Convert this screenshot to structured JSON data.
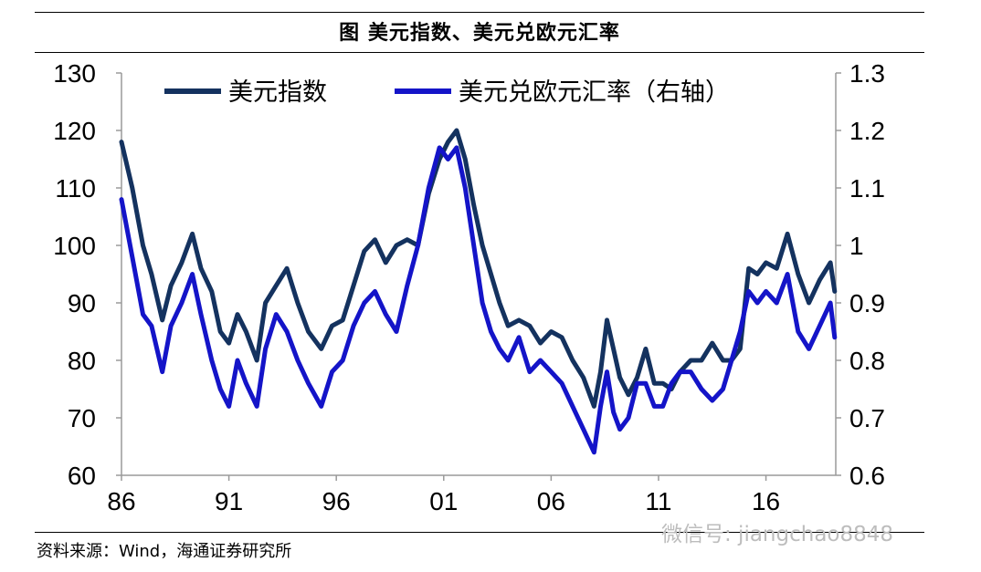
{
  "title": "图  美元指数、美元兑欧元汇率",
  "source": "资料来源：Wind，海通证券研究所",
  "watermark": "微信号: jiangchao8848",
  "chart_data": {
    "type": "line",
    "x_ticks": [
      "86",
      "91",
      "96",
      "01",
      "06",
      "11",
      "16"
    ],
    "x_tick_years": [
      1986,
      1991,
      1996,
      2001,
      2006,
      2011,
      2016
    ],
    "xlim": [
      1986,
      2019.25
    ],
    "ylim_left": [
      60,
      130
    ],
    "yticks_left": [
      "60",
      "70",
      "80",
      "90",
      "100",
      "110",
      "120",
      "130"
    ],
    "ylim_right": [
      0.6,
      1.3
    ],
    "yticks_right": [
      "0.6",
      "0.7",
      "0.8",
      "0.9",
      "1",
      "1.1",
      "1.2",
      "1.3"
    ],
    "grid": false,
    "legend_position": "top",
    "series": [
      {
        "name": "美元指数",
        "axis": "left",
        "color": "#14325f",
        "x": [
          1986.0,
          1986.5,
          1987.0,
          1987.4,
          1987.9,
          1988.3,
          1988.8,
          1989.3,
          1989.7,
          1990.2,
          1990.6,
          1991.0,
          1991.4,
          1991.8,
          1992.3,
          1992.7,
          1993.2,
          1993.7,
          1994.2,
          1994.7,
          1995.3,
          1995.8,
          1996.3,
          1996.8,
          1997.3,
          1997.8,
          1998.3,
          1998.8,
          1999.3,
          1999.8,
          2000.3,
          2000.8,
          2001.2,
          2001.6,
          2002.0,
          2002.4,
          2002.8,
          2003.2,
          2003.6,
          2004.0,
          2004.5,
          2005.0,
          2005.5,
          2006.0,
          2006.5,
          2007.0,
          2007.5,
          2008.0,
          2008.3,
          2008.6,
          2008.9,
          2009.2,
          2009.6,
          2010.0,
          2010.4,
          2010.8,
          2011.2,
          2011.6,
          2012.0,
          2012.5,
          2013.0,
          2013.5,
          2014.0,
          2014.4,
          2014.8,
          2015.2,
          2015.6,
          2016.0,
          2016.5,
          2017.0,
          2017.5,
          2018.0,
          2018.5,
          2019.0,
          2019.2
        ],
        "values": [
          118,
          110,
          100,
          95,
          87,
          93,
          97,
          102,
          96,
          92,
          85,
          83,
          88,
          85,
          80,
          90,
          93,
          96,
          90,
          85,
          82,
          86,
          87,
          93,
          99,
          101,
          97,
          100,
          101,
          100,
          109,
          115,
          118,
          120,
          115,
          107,
          100,
          95,
          90,
          86,
          87,
          86,
          83,
          85,
          84,
          80,
          77,
          72,
          78,
          87,
          82,
          77,
          74,
          77,
          82,
          76,
          76,
          75,
          78,
          80,
          80,
          83,
          80,
          80,
          82,
          96,
          95,
          97,
          96,
          102,
          95,
          90,
          94,
          97,
          92
        ]
      },
      {
        "name": "美元兑欧元汇率（右轴）",
        "axis": "right",
        "color": "#1414c8",
        "x": [
          1986.0,
          1986.5,
          1987.0,
          1987.4,
          1987.9,
          1988.3,
          1988.8,
          1989.3,
          1989.7,
          1990.2,
          1990.6,
          1991.0,
          1991.4,
          1991.8,
          1992.3,
          1992.7,
          1993.2,
          1993.7,
          1994.2,
          1994.7,
          1995.3,
          1995.8,
          1996.3,
          1996.8,
          1997.3,
          1997.8,
          1998.3,
          1998.8,
          1999.3,
          1999.8,
          2000.3,
          2000.8,
          2001.2,
          2001.6,
          2002.0,
          2002.4,
          2002.8,
          2003.2,
          2003.6,
          2004.0,
          2004.5,
          2005.0,
          2005.5,
          2006.0,
          2006.5,
          2007.0,
          2007.5,
          2008.0,
          2008.3,
          2008.6,
          2008.9,
          2009.2,
          2009.6,
          2010.0,
          2010.4,
          2010.8,
          2011.2,
          2011.6,
          2012.0,
          2012.5,
          2013.0,
          2013.5,
          2014.0,
          2014.4,
          2014.8,
          2015.2,
          2015.6,
          2016.0,
          2016.5,
          2017.0,
          2017.5,
          2018.0,
          2018.5,
          2019.0,
          2019.2
        ],
        "values": [
          1.08,
          0.98,
          0.88,
          0.86,
          0.78,
          0.86,
          0.9,
          0.95,
          0.88,
          0.8,
          0.75,
          0.72,
          0.8,
          0.76,
          0.72,
          0.82,
          0.88,
          0.85,
          0.8,
          0.76,
          0.72,
          0.78,
          0.8,
          0.86,
          0.9,
          0.92,
          0.88,
          0.85,
          0.93,
          1.0,
          1.1,
          1.17,
          1.15,
          1.17,
          1.1,
          1.0,
          0.9,
          0.85,
          0.82,
          0.8,
          0.84,
          0.78,
          0.8,
          0.78,
          0.76,
          0.72,
          0.68,
          0.64,
          0.72,
          0.78,
          0.71,
          0.68,
          0.7,
          0.76,
          0.76,
          0.72,
          0.72,
          0.76,
          0.78,
          0.78,
          0.75,
          0.73,
          0.75,
          0.8,
          0.85,
          0.92,
          0.9,
          0.92,
          0.9,
          0.95,
          0.85,
          0.82,
          0.86,
          0.9,
          0.84
        ]
      }
    ]
  }
}
